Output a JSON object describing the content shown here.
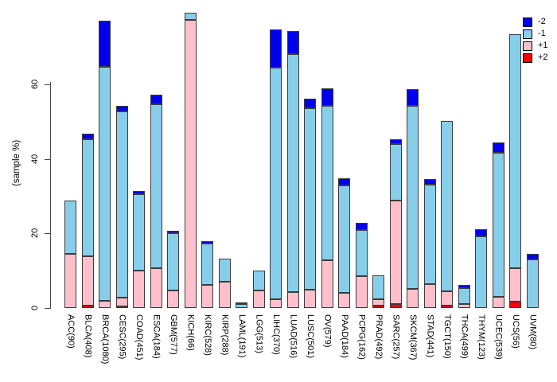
{
  "chart_data": {
    "type": "stacked-bar",
    "title": "",
    "ylabel": "(sample %)",
    "xlabel": "",
    "ylim": [
      0,
      80
    ],
    "yticks": [
      0,
      20,
      40,
      60
    ],
    "grid": false,
    "legend_position": "top-right",
    "categories": [
      "ACC(90)",
      "BLCA(408)",
      "BRCA(1080)",
      "CESC(295)",
      "COAD(451)",
      "ESCA(184)",
      "GBM(577)",
      "KICH(66)",
      "KIRC(528)",
      "KIRP(288)",
      "LAML(191)",
      "LGG(513)",
      "LIHC(370)",
      "LUAD(516)",
      "LUSC(501)",
      "OV(579)",
      "PAAD(184)",
      "PCPG(162)",
      "PRAD(492)",
      "SARC(257)",
      "SKCM(367)",
      "STAD(441)",
      "TGCT(150)",
      "THCA(499)",
      "THYM(123)",
      "UCEC(539)",
      "UCS(56)",
      "UVM(80)"
    ],
    "stack_order_bottom_to_top": [
      "+2",
      "+1",
      "-1",
      "-2"
    ],
    "series": [
      {
        "name": "+2",
        "color": "#FF0000",
        "values": [
          0,
          0.7,
          0,
          0.5,
          0,
          0,
          0,
          0,
          0,
          0,
          0,
          0,
          0,
          0,
          0,
          0,
          0,
          0,
          0.6,
          1.0,
          0,
          0,
          0.7,
          0,
          0,
          0,
          1.7,
          0
        ]
      },
      {
        "name": "+1",
        "color": "#FFC0CB",
        "values": [
          14.5,
          13.2,
          1.9,
          2.2,
          10.0,
          10.7,
          4.8,
          77.2,
          6.2,
          7.0,
          0,
          4.8,
          2.3,
          4.3,
          5.0,
          12.7,
          4.0,
          8.6,
          1.8,
          27.7,
          5.2,
          6.4,
          3.8,
          1.0,
          0,
          2.9,
          9.0,
          0
        ]
      },
      {
        "name": "-1",
        "color": "#87CEEB",
        "values": [
          14.2,
          31.4,
          62.7,
          49.9,
          20.6,
          44.0,
          15.2,
          1.9,
          11.1,
          6.3,
          1.1,
          5.3,
          62.2,
          63.7,
          48.6,
          41.5,
          28.9,
          12.3,
          6.3,
          15.3,
          49.0,
          26.6,
          45.6,
          4.3,
          19.2,
          38.7,
          62.6,
          13.0
        ]
      },
      {
        "name": "-2",
        "color": "#0000EE",
        "values": [
          0,
          1.4,
          12.4,
          1.6,
          0.8,
          2.5,
          0.8,
          0,
          0.7,
          0,
          0.5,
          0,
          10.2,
          6.3,
          2.5,
          4.7,
          1.8,
          2.0,
          0,
          1.3,
          4.5,
          1.6,
          0,
          0.8,
          1.9,
          2.7,
          0,
          1.6
        ]
      }
    ],
    "totals": [
      28.7,
      46.7,
      77.0,
      54.2,
      31.4,
      57.2,
      20.8,
      79.1,
      18.0,
      13.3,
      1.6,
      10.1,
      74.7,
      74.3,
      56.1,
      58.9,
      34.7,
      22.9,
      8.7,
      45.3,
      58.7,
      34.6,
      50.1,
      6.1,
      21.1,
      44.3,
      73.3,
      14.6
    ],
    "legend": [
      {
        "label": "-2",
        "color": "#0000EE"
      },
      {
        "label": "-1",
        "color": "#87CEEB"
      },
      {
        "label": "+1",
        "color": "#FFC0CB"
      },
      {
        "label": "+2",
        "color": "#FF0000"
      }
    ]
  }
}
